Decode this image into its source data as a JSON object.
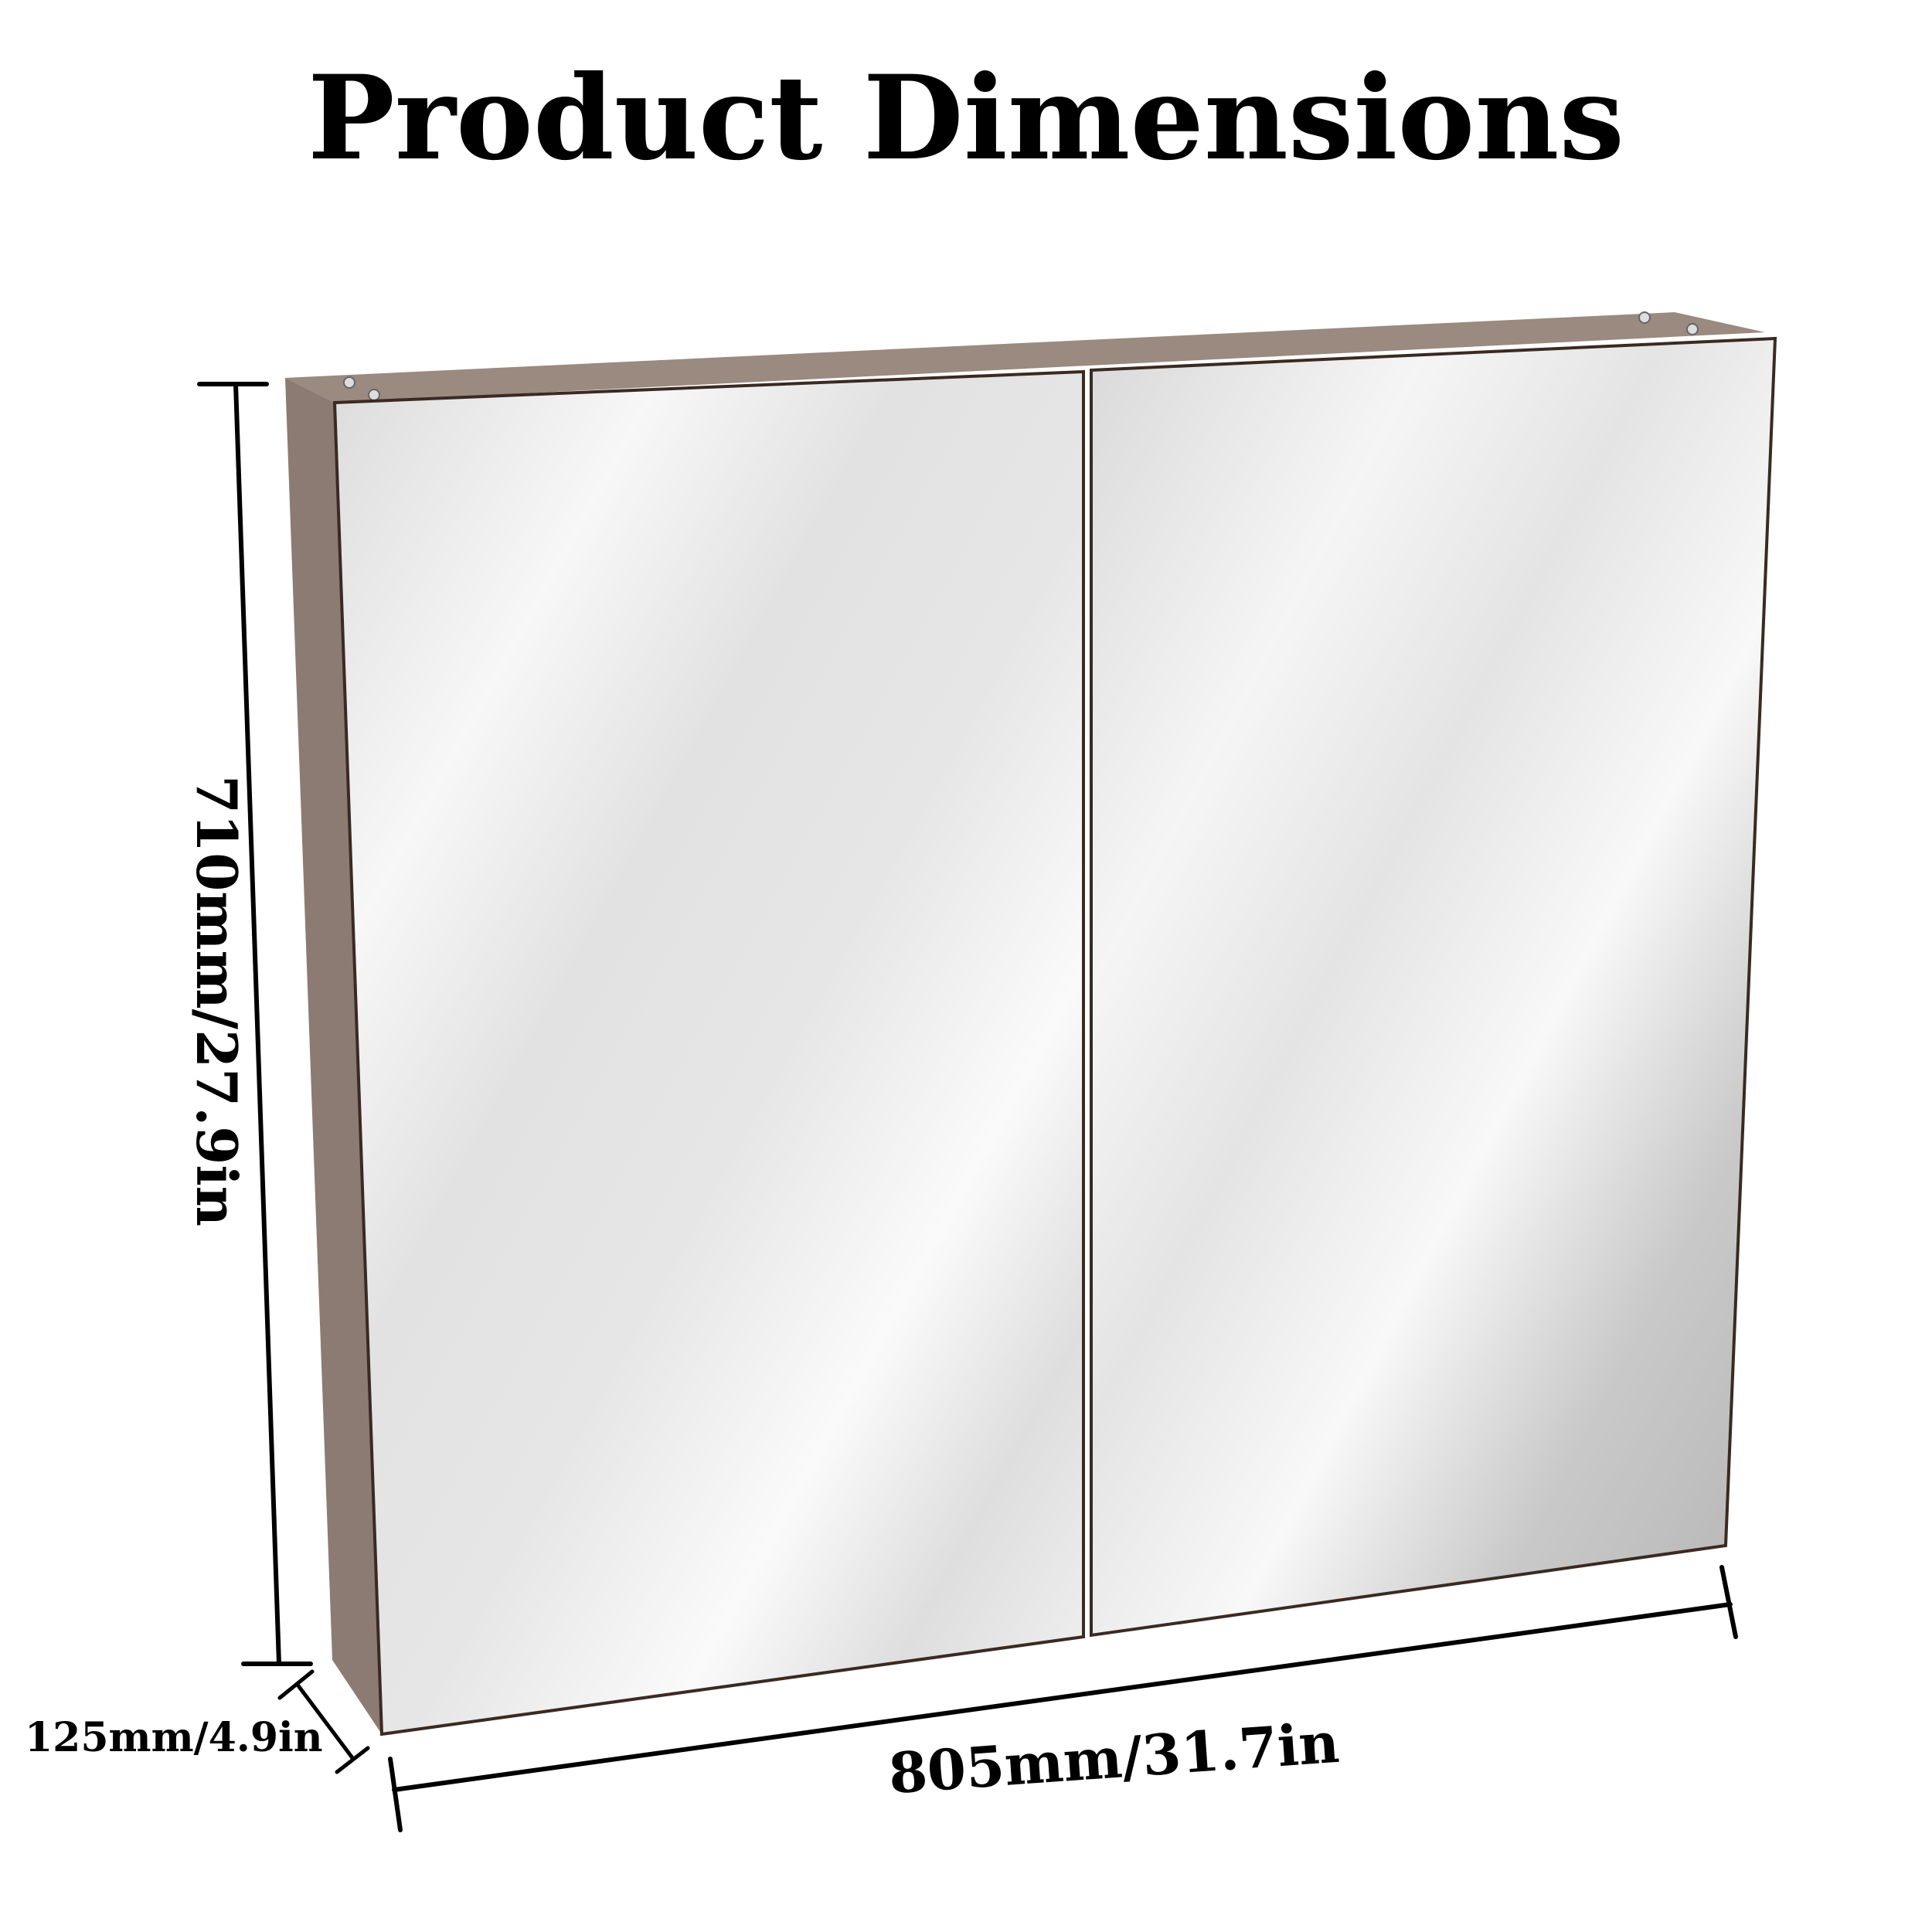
{
  "title": "Product Dimensions",
  "dimensions": {
    "height": "710mm/27.9in",
    "width": "805mm/31.7in",
    "depth": "125mm/4.9in"
  },
  "colors": {
    "frame": "#8b7b72",
    "frame_top": "#9a8a80",
    "door_edge": "#3a2a22",
    "mirror_light": "#ffffff",
    "mirror_dark": "#c8c8c8",
    "dimension_line": "#000000"
  }
}
